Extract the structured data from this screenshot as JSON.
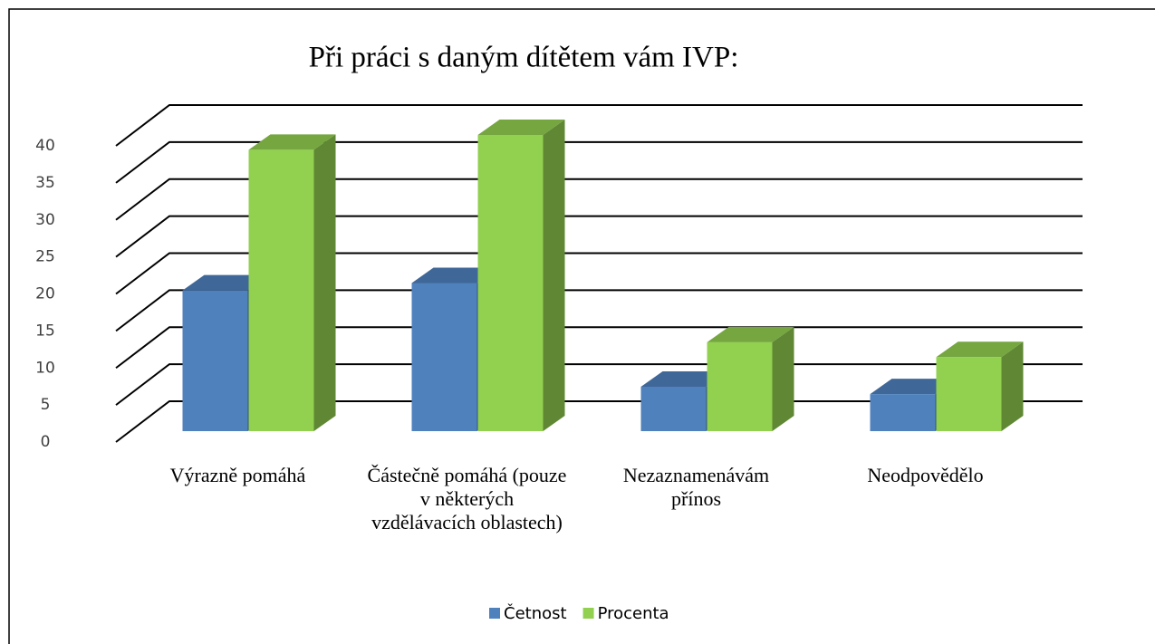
{
  "chart_data": {
    "type": "bar3d",
    "title": "Při práci s daným dítětem vám IVP:",
    "categories": [
      "Výrazně pomáhá",
      "Částečně pomáhá (pouze v některých vzdělávacích oblastech)",
      "Nezaznamenávám přínos",
      "Neodpovědělo"
    ],
    "series": [
      {
        "name": "Četnost",
        "color": "#4f81bd",
        "values": [
          19,
          20,
          6,
          5
        ]
      },
      {
        "name": "Procenta",
        "color": "#92d050",
        "values": [
          38,
          40,
          12,
          10
        ]
      }
    ],
    "ylim": [
      0,
      40
    ],
    "yticks": [
      0,
      5,
      10,
      15,
      20,
      25,
      30,
      35,
      40
    ],
    "grid": true,
    "legend": "bottom"
  }
}
